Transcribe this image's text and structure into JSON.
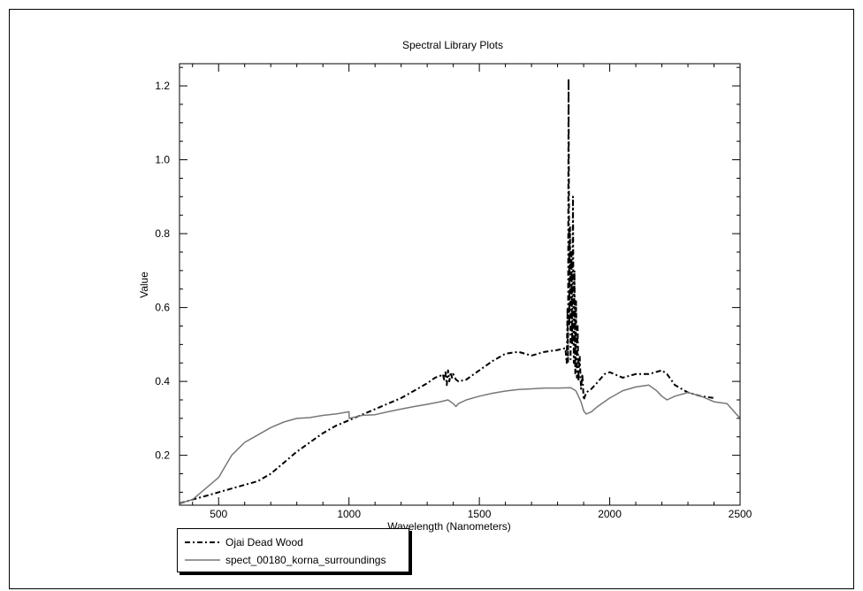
{
  "chart_data": {
    "type": "line",
    "title": "Spectral Library Plots",
    "xlabel": "Wavelength (Nanometers)",
    "ylabel": "Value",
    "xlim": [
      350,
      2500
    ],
    "ylim": [
      0.065,
      1.26
    ],
    "xticks": [
      500,
      1000,
      1500,
      2000,
      2500
    ],
    "yticks": [
      0.2,
      0.4,
      0.6,
      0.8,
      1.0,
      1.2
    ],
    "ytick_labels": [
      "0.2",
      "0.4",
      "0.6",
      "0.8",
      "1.0",
      "1.2"
    ],
    "legend_position": "bottom-left, below plot",
    "series": [
      {
        "name": "Ojai Dead Wood",
        "style": "dash-dot",
        "color": "#000000",
        "x": [
          350,
          400,
          450,
          500,
          550,
          600,
          650,
          700,
          750,
          800,
          850,
          900,
          950,
          1000,
          1050,
          1100,
          1150,
          1200,
          1250,
          1300,
          1330,
          1350,
          1360,
          1365,
          1370,
          1375,
          1380,
          1385,
          1390,
          1395,
          1400,
          1410,
          1420,
          1450,
          1500,
          1550,
          1600,
          1650,
          1700,
          1750,
          1800,
          1830,
          1835,
          1838,
          1840,
          1842,
          1845,
          1848,
          1850,
          1853,
          1856,
          1859,
          1862,
          1865,
          1868,
          1871,
          1874,
          1877,
          1880,
          1885,
          1890,
          1895,
          1900,
          1910,
          1930,
          1950,
          1980,
          2000,
          2050,
          2100,
          2150,
          2200,
          2220,
          2250,
          2300,
          2350,
          2400
        ],
        "y": [
          0.07,
          0.08,
          0.09,
          0.1,
          0.11,
          0.12,
          0.13,
          0.15,
          0.18,
          0.21,
          0.235,
          0.26,
          0.28,
          0.295,
          0.31,
          0.325,
          0.34,
          0.355,
          0.375,
          0.395,
          0.41,
          0.415,
          0.42,
          0.405,
          0.425,
          0.39,
          0.43,
          0.4,
          0.425,
          0.41,
          0.42,
          0.405,
          0.4,
          0.405,
          0.43,
          0.455,
          0.475,
          0.48,
          0.47,
          0.48,
          0.485,
          0.49,
          0.45,
          0.6,
          0.45,
          1.22,
          0.55,
          0.82,
          0.46,
          0.75,
          0.5,
          0.9,
          0.45,
          0.7,
          0.42,
          0.62,
          0.41,
          0.55,
          0.4,
          0.47,
          0.38,
          0.42,
          0.35,
          0.37,
          0.38,
          0.395,
          0.42,
          0.425,
          0.41,
          0.42,
          0.42,
          0.43,
          0.42,
          0.39,
          0.37,
          0.36,
          0.355
        ]
      },
      {
        "name": "spect_00180_korna_surroundings",
        "style": "solid",
        "color": "#777777",
        "x": [
          350,
          400,
          450,
          500,
          550,
          600,
          650,
          700,
          750,
          800,
          850,
          900,
          950,
          1000,
          1001,
          1050,
          1100,
          1150,
          1200,
          1250,
          1300,
          1350,
          1380,
          1400,
          1410,
          1420,
          1450,
          1500,
          1550,
          1600,
          1650,
          1700,
          1750,
          1800,
          1850,
          1870,
          1890,
          1900,
          1910,
          1930,
          1950,
          2000,
          2050,
          2100,
          2150,
          2180,
          2200,
          2220,
          2250,
          2300,
          2350,
          2400,
          2450,
          2500
        ],
        "y": [
          0.07,
          0.08,
          0.11,
          0.14,
          0.2,
          0.235,
          0.255,
          0.275,
          0.29,
          0.3,
          0.302,
          0.308,
          0.312,
          0.318,
          0.3,
          0.308,
          0.31,
          0.318,
          0.325,
          0.332,
          0.338,
          0.345,
          0.35,
          0.34,
          0.332,
          0.34,
          0.35,
          0.36,
          0.368,
          0.374,
          0.378,
          0.38,
          0.382,
          0.382,
          0.383,
          0.375,
          0.345,
          0.32,
          0.312,
          0.318,
          0.33,
          0.355,
          0.375,
          0.385,
          0.39,
          0.375,
          0.36,
          0.35,
          0.36,
          0.37,
          0.36,
          0.345,
          0.34,
          0.3
        ]
      }
    ]
  }
}
